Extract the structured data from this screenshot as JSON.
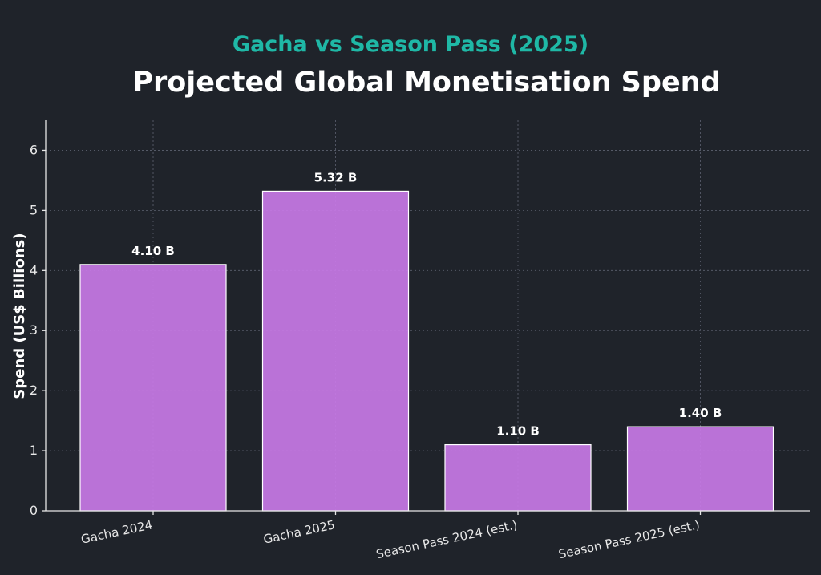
{
  "chart_data": {
    "type": "bar",
    "subtitle": "Gacha vs Season Pass (2025)",
    "title": "Projected Global Monetisation Spend",
    "xlabel": "",
    "ylabel": "Spend (US$ Billions)",
    "categories": [
      "Gacha 2024",
      "Gacha 2025",
      "Season Pass 2024 (est.)",
      "Season Pass 2025 (est.)"
    ],
    "values": [
      4.1,
      5.32,
      1.1,
      1.4
    ],
    "data_labels": [
      "4.10 B",
      "5.32 B",
      "1.10 B",
      "1.40 B"
    ],
    "yticks": [
      0,
      1,
      2,
      3,
      4,
      5,
      6
    ],
    "ylim": [
      0,
      6.5
    ],
    "grid": true,
    "colors": {
      "bar": "#c87ae6",
      "subtitle": "#1fb8a6",
      "background": "#1f232a"
    }
  }
}
